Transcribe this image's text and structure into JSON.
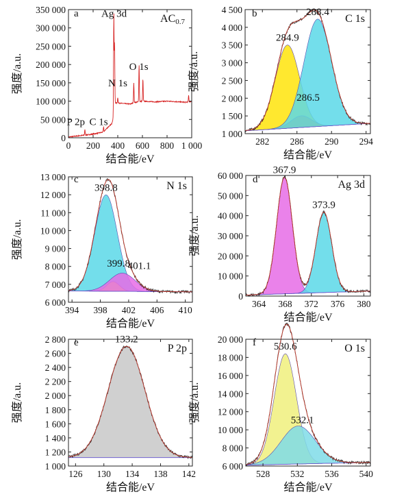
{
  "figure": {
    "ylabel": "强度/a.u.",
    "xlabel": "结合能/eV"
  },
  "chart_data": [
    {
      "panel": "a",
      "type": "line",
      "title": "AC0.7",
      "title_main": "AC",
      "title_sub": "0.7",
      "xlabel": "结合能/eV",
      "ylabel": "强度/a.u.",
      "xlim": [
        0,
        1000
      ],
      "ylim": [
        0,
        350000
      ],
      "xticks": [
        0,
        200,
        400,
        600,
        800,
        1000
      ],
      "xtick_labels": [
        "0",
        "200",
        "400",
        "600",
        "800",
        "1 000"
      ],
      "yticks": [
        0,
        50000,
        100000,
        150000,
        200000,
        250000,
        300000,
        350000
      ],
      "ytick_labels": [
        "0",
        "50 000",
        "100 000",
        "150 000",
        "200 000",
        "250 000",
        "300 000",
        "350 000"
      ],
      "baseline": [
        [
          0,
          2000
        ],
        [
          100,
          6000
        ],
        [
          200,
          10000
        ],
        [
          290,
          16000
        ],
        [
          300,
          22000
        ],
        [
          350,
          38000
        ],
        [
          370,
          60000
        ],
        [
          380,
          95000
        ],
        [
          400,
          95000
        ],
        [
          500,
          92000
        ],
        [
          530,
          96000
        ],
        [
          600,
          100000
        ],
        [
          700,
          98000
        ],
        [
          800,
          100000
        ],
        [
          900,
          98000
        ],
        [
          950,
          97000
        ],
        [
          980,
          98000
        ],
        [
          1000,
          100000
        ]
      ],
      "peaks": [
        {
          "x": 133,
          "y": 22000
        },
        {
          "x": 285,
          "y": 30000
        },
        {
          "x": 368,
          "y": 335000
        },
        {
          "x": 374,
          "y": 255000
        },
        {
          "x": 400,
          "y": 110000
        },
        {
          "x": 530,
          "y": 150000
        },
        {
          "x": 573,
          "y": 200000
        },
        {
          "x": 604,
          "y": 160000
        },
        {
          "x": 975,
          "y": 115000
        }
      ],
      "annotations": [
        {
          "text": "Ag 3d",
          "x": 370,
          "y": 330000
        },
        {
          "text": "O 1s",
          "x": 570,
          "y": 185000
        },
        {
          "text": "N 1s",
          "x": 400,
          "y": 140000
        },
        {
          "text": "P 2p",
          "x": 60,
          "y": 35000
        },
        {
          "text": "C 1s",
          "x": 245,
          "y": 35000
        }
      ]
    },
    {
      "panel": "b",
      "type": "line",
      "title": "C 1s",
      "xlabel": "结合能/eV",
      "ylabel": "强度/a.u.",
      "xlim": [
        280,
        294.5
      ],
      "ylim": [
        1000,
        4500
      ],
      "xticks": [
        282,
        286,
        290,
        294
      ],
      "xtick_labels": [
        "282",
        "286",
        "290",
        "294"
      ],
      "yticks": [
        1000,
        1500,
        2000,
        2500,
        3000,
        3500,
        4000,
        4500
      ],
      "ytick_labels": [
        "1 000",
        "1 500",
        "2 000",
        "2 500",
        "3 000",
        "3 500",
        "4 000",
        "4 500"
      ],
      "background": [
        [
          280,
          1080
        ],
        [
          294.5,
          1290
        ]
      ],
      "components": [
        {
          "center": 284.9,
          "height": 2350,
          "width": 1.4,
          "color": "#ffe40a"
        },
        {
          "center": 286.5,
          "height": 330,
          "width": 1.2,
          "color": "#f08a18"
        },
        {
          "center": 288.4,
          "height": 3030,
          "width": 1.6,
          "color": "#5ad8e8"
        }
      ],
      "peak_labels": [
        "284.9",
        "286.5",
        "288.4"
      ]
    },
    {
      "panel": "c",
      "type": "line",
      "title": "N 1s",
      "xlabel": "结合能/eV",
      "ylabel": "强度/a.u.",
      "xlim": [
        393.5,
        411
      ],
      "ylim": [
        6000,
        13000
      ],
      "xticks": [
        394,
        398,
        402,
        406,
        410
      ],
      "xtick_labels": [
        "394",
        "398",
        "402",
        "406",
        "410"
      ],
      "yticks": [
        6000,
        7000,
        8000,
        9000,
        10000,
        11000,
        12000,
        13000
      ],
      "ytick_labels": [
        "6 000",
        "7 000",
        "8 000",
        "9 000",
        "10 000",
        "11 000",
        "12 000",
        "13 000"
      ],
      "background": [
        [
          393.5,
          6630
        ],
        [
          411,
          6580
        ]
      ],
      "components": [
        {
          "center": 398.8,
          "height": 5380,
          "width": 1.6,
          "color": "#5ad8e8"
        },
        {
          "center": 399.8,
          "height": 540,
          "width": 0.9,
          "color": "#f0f040"
        },
        {
          "center": 401.1,
          "height": 1020,
          "width": 1.8,
          "color": "#e66ce6"
        }
      ],
      "peak_labels": [
        "398.8",
        "399.8",
        "401.1"
      ]
    },
    {
      "panel": "d",
      "type": "line",
      "title": "Ag 3d",
      "xlabel": "结合能/eV",
      "ylabel": "强度/a.u.",
      "xlim": [
        362,
        381
      ],
      "ylim": [
        0,
        60000
      ],
      "xticks": [
        364,
        368,
        372,
        376,
        380
      ],
      "xtick_labels": [
        "364",
        "368",
        "372",
        "376",
        "380"
      ],
      "yticks": [
        0,
        10000,
        20000,
        30000,
        40000,
        50000,
        60000
      ],
      "ytick_labels": [
        "0",
        "10 000",
        "20 000",
        "30 000",
        "40 000",
        "50 000",
        "60 000"
      ],
      "background": [
        [
          362,
          500
        ],
        [
          381,
          2500
        ]
      ],
      "components": [
        {
          "center": 367.9,
          "height": 58000,
          "width": 1.2,
          "color": "#e66ce6"
        },
        {
          "center": 373.9,
          "height": 40000,
          "width": 1.2,
          "color": "#5ad8e8"
        }
      ],
      "peak_labels": [
        "367.9",
        "373.9"
      ]
    },
    {
      "panel": "e",
      "type": "line",
      "title": "P 2p",
      "xlabel": "结合能/eV",
      "ylabel": "强度/a.u.",
      "xlim": [
        125,
        142.5
      ],
      "ylim": [
        1000,
        2800
      ],
      "xticks": [
        126,
        130,
        134,
        138,
        142
      ],
      "xtick_labels": [
        "126",
        "130",
        "134",
        "138",
        "142"
      ],
      "yticks": [
        1000,
        1200,
        1400,
        1600,
        1800,
        2000,
        2200,
        2400,
        2600,
        2800
      ],
      "ytick_labels": [
        "1 000",
        "1 200",
        "1 400",
        "1 600",
        "1 800",
        "2 000",
        "2 200",
        "2 400",
        "2 600",
        "2 800"
      ],
      "background": [
        [
          125,
          1120
        ],
        [
          142.5,
          1120
        ]
      ],
      "components": [
        {
          "center": 133.2,
          "height": 1580,
          "width": 2.6,
          "color": "#c8c8c8"
        }
      ],
      "peak_labels": [
        "133.2"
      ]
    },
    {
      "panel": "f",
      "type": "line",
      "title": "O 1s",
      "xlabel": "结合能/eV",
      "ylabel": "强度/a.u.",
      "xlim": [
        526,
        540.5
      ],
      "ylim": [
        6000,
        20000
      ],
      "xticks": [
        528,
        532,
        536,
        540
      ],
      "xtick_labels": [
        "528",
        "532",
        "536",
        "540"
      ],
      "yticks": [
        6000,
        8000,
        10000,
        12000,
        14000,
        16000,
        18000,
        20000
      ],
      "ytick_labels": [
        "6 000",
        "8 000",
        "10 000",
        "12 000",
        "14 000",
        "16 000",
        "18 000",
        "20 000"
      ],
      "background": [
        [
          526,
          6100
        ],
        [
          540.5,
          6400
        ]
      ],
      "components": [
        {
          "center": 530.6,
          "height": 12200,
          "width": 1.3,
          "color": "#f0f07c"
        },
        {
          "center": 532.1,
          "height": 4200,
          "width": 2.0,
          "color": "#7fdce8"
        }
      ],
      "peak_labels": [
        "530.6",
        "532.1"
      ]
    }
  ]
}
